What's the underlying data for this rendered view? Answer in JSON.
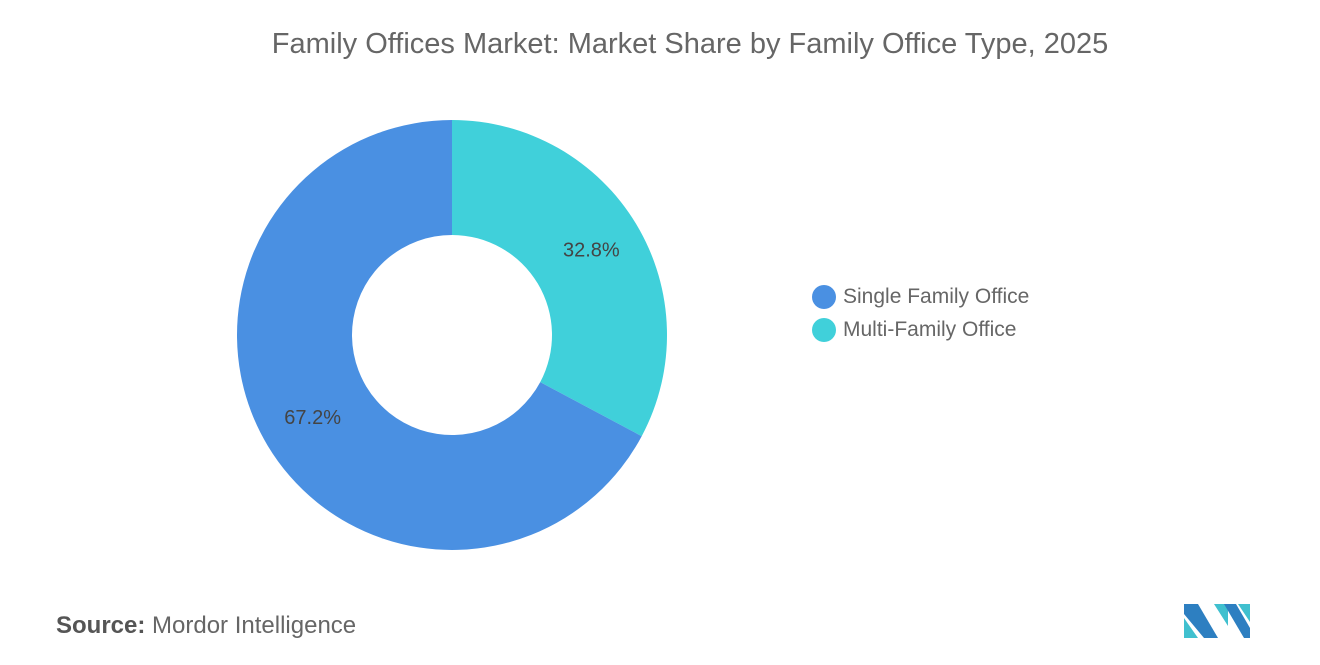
{
  "chart_data": {
    "type": "pie",
    "variant": "donut",
    "title": "Family Offices Market: Market Share by Family Office Type, 2025",
    "series": [
      {
        "name": "Single Family Office",
        "value": 67.2,
        "label": "67.2%",
        "color": "#4a90e2"
      },
      {
        "name": "Multi-Family Office",
        "value": 32.8,
        "label": "32.8%",
        "color": "#40d0da"
      }
    ],
    "legend_position": "right"
  },
  "source": {
    "label": "Source:",
    "text": "Mordor Intelligence"
  },
  "logo": {
    "text": "Mordor Intelligence",
    "colors": [
      "#2d7fc1",
      "#40c0cf"
    ]
  }
}
